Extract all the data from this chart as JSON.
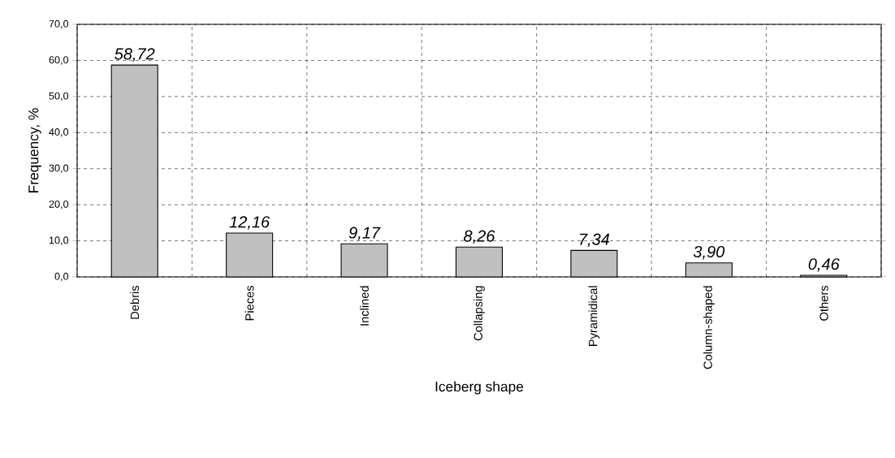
{
  "chart_data": {
    "type": "bar",
    "xlabel": "Iceberg shape",
    "ylabel": "Frequency, %",
    "categories": [
      "Debris",
      "Pieces",
      "Inclined",
      "Collapsing",
      "Pyramidical",
      "Column-shaped",
      "Others"
    ],
    "values": [
      58.72,
      12.16,
      9.17,
      8.26,
      7.34,
      3.9,
      0.46
    ],
    "value_labels": [
      "58,72",
      "12,16",
      "9,17",
      "8,26",
      "7,34",
      "3,90",
      "0,46"
    ],
    "color": "#c0c0c0",
    "ylim": [
      0,
      70
    ],
    "yticks": [
      {
        "value": 0,
        "label": "0,0"
      },
      {
        "value": 10,
        "label": "10,0"
      },
      {
        "value": 20,
        "label": "20,0"
      },
      {
        "value": 30,
        "label": "30,0"
      },
      {
        "value": 40,
        "label": "40,0"
      },
      {
        "value": 50,
        "label": "50,0"
      },
      {
        "value": 60,
        "label": "60,0"
      },
      {
        "value": 70,
        "label": "70,0"
      }
    ],
    "grid": true
  }
}
